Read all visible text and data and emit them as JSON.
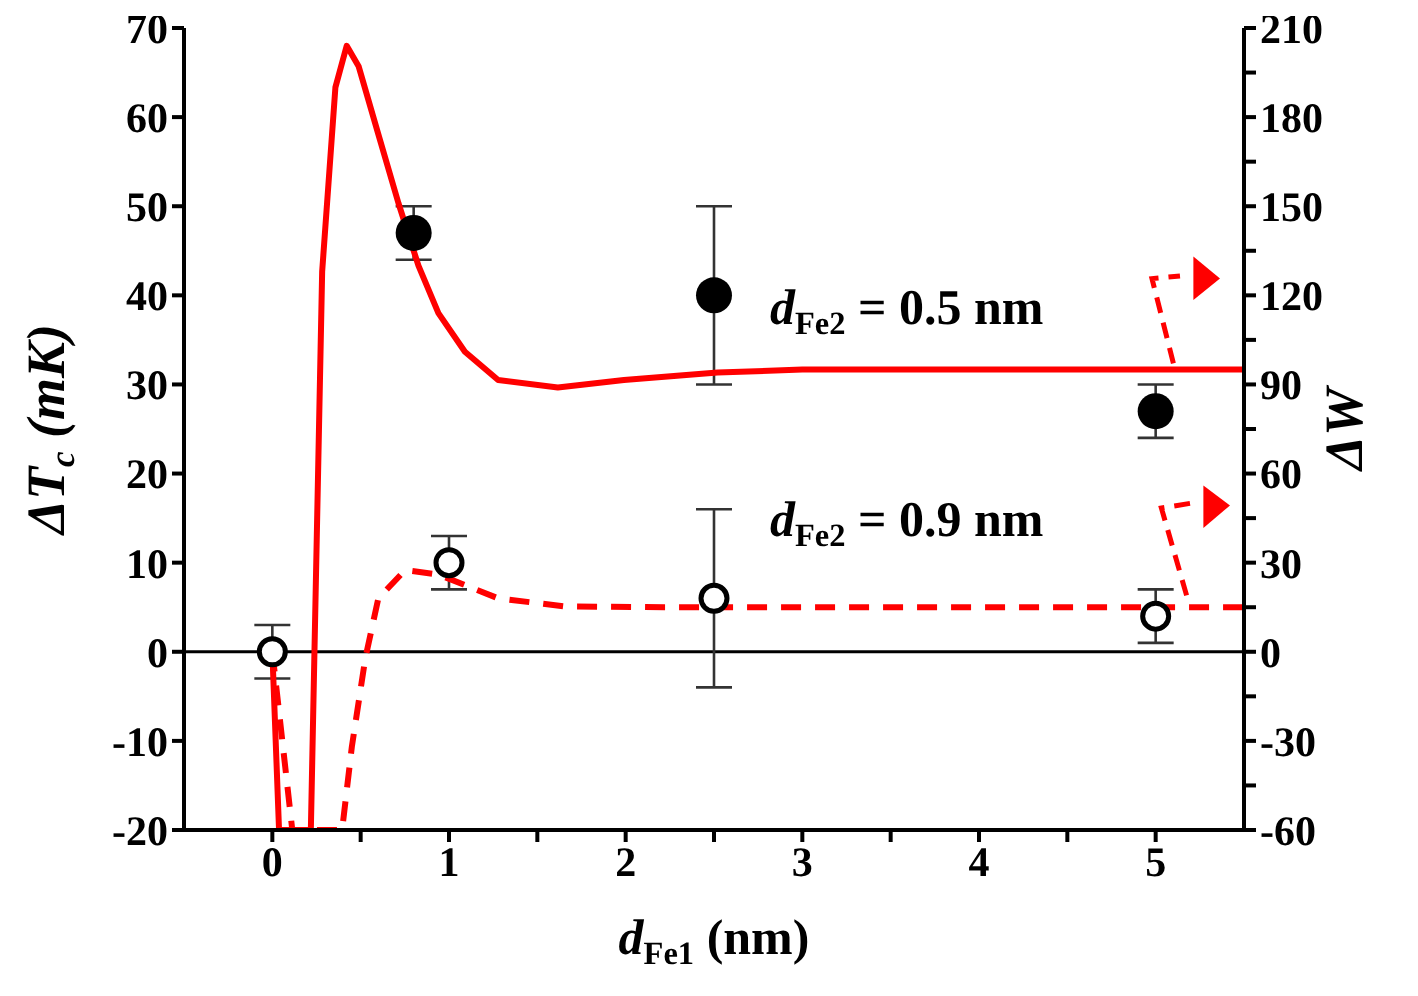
{
  "chart_data": {
    "type": "scatter",
    "xlabel": "d$_{Fe1}$ (nm)",
    "ylabel": "ΔT$_{c}$ (mK)",
    "y2label": "ΔW",
    "xlim": [
      -0.5,
      5.5
    ],
    "xticks": [
      0,
      {
        "value": 0.5,
        "label": null
      },
      1,
      {
        "value": 1.5,
        "label": null
      },
      2,
      {
        "value": 2.5,
        "label": null
      },
      3,
      {
        "value": 3.5,
        "label": null
      },
      4,
      {
        "value": 4.5,
        "label": null
      },
      5
    ],
    "ylim": [
      -20,
      70
    ],
    "yticks": [
      -20,
      -10,
      0,
      10,
      20,
      30,
      40,
      50,
      60,
      70
    ],
    "y2lim": [
      -60,
      210
    ],
    "y2ticks": [
      -60,
      {
        "value": -45,
        "label": null
      },
      -30,
      {
        "value": -15,
        "label": null
      },
      0,
      {
        "value": 15,
        "label": null
      },
      30,
      {
        "value": 45,
        "label": null
      },
      60,
      {
        "value": 75,
        "label": null
      },
      90,
      {
        "value": 105,
        "label": null
      },
      120,
      {
        "value": 135,
        "label": null
      },
      150,
      {
        "value": 165,
        "label": null
      },
      180,
      {
        "value": 195,
        "label": null
      },
      210
    ],
    "ref_lines": [
      {
        "axis": "y",
        "value": 0,
        "color": "#000000"
      }
    ],
    "annotations": [
      "d$_{Fe2}$ = 0.5 nm",
      "d$_{Fe2}$ = 0.9 nm"
    ],
    "series": [
      {
        "color": "#000000",
        "marker": "circle",
        "x": [
          0.8,
          2.5,
          5
        ],
        "values": [
          47,
          40,
          27
        ],
        "errors": [
          3,
          10,
          3
        ]
      },
      {
        "color": "#000000",
        "marker": "circle",
        "x": [
          0,
          1,
          2.5,
          5
        ],
        "values": [
          0,
          10,
          6,
          4
        ],
        "errors": [
          3,
          3,
          10,
          3
        ]
      },
      {
        "type": "line",
        "axis": "y2",
        "color": "#ff0000",
        "line_style": "solid",
        "x": [
          0,
          0.038,
          0.218,
          0.282,
          0.357,
          0.421,
          0.489,
          0.601,
          0.714,
          0.827,
          0.94,
          1.09,
          1.278,
          1.616,
          1.99,
          2.52,
          3,
          4,
          5,
          5.5
        ],
        "values": [
          0,
          -60,
          -60,
          128,
          190,
          204,
          197,
          174,
          151,
          130,
          114,
          101,
          91.5,
          89,
          91.5,
          94,
          95,
          95,
          95,
          95
        ]
      },
      {
        "type": "line",
        "axis": "y2",
        "color": "#ff0000",
        "line_style": "dashed",
        "x": [
          0,
          0.113,
          0.395,
          0.45,
          0.526,
          0.6,
          0.752,
          0.94,
          1.278,
          1.65,
          2.22,
          3,
          4,
          5,
          5.5
        ],
        "values": [
          0,
          -60,
          -60,
          -32,
          -2.3,
          18,
          27.5,
          26,
          18,
          15.3,
          15,
          15,
          15,
          15,
          15
        ]
      }
    ]
  }
}
